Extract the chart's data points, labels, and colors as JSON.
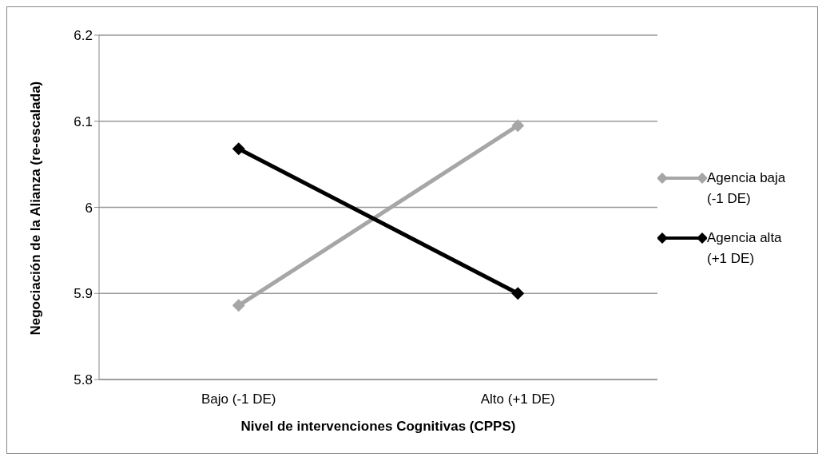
{
  "chart_data": {
    "type": "line",
    "xlabel": "Nivel de intervenciones Cognitivas (CPPS)",
    "ylabel": "Negociación de la Alianza (re-escalada)",
    "categories": [
      "Bajo (-1 DE)",
      "Alto (+1 DE)"
    ],
    "series": [
      {
        "name": "Agencia baja (-1 DE)",
        "color": "#a6a6a6",
        "values": [
          5.886,
          6.095
        ]
      },
      {
        "name": "Agencia alta  (+1 DE)",
        "color": "#000000",
        "values": [
          6.068,
          5.9
        ]
      }
    ],
    "ylim": [
      5.8,
      6.2
    ],
    "yticks": [
      5.8,
      5.9,
      {
        "value": 6,
        "label": "6"
      },
      6.1,
      6.2
    ],
    "grid": "y",
    "legend": "right",
    "marker": "diamond",
    "line_style": "solid"
  }
}
